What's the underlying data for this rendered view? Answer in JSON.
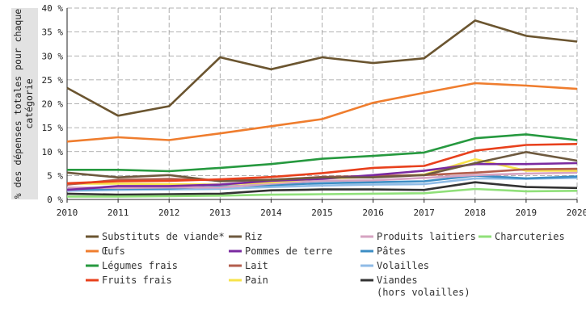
{
  "chart_data": {
    "type": "line",
    "title": "",
    "xlabel": "",
    "ylabel": "% des dépenses totales pour chaque catégorie",
    "x": [
      2010,
      2011,
      2012,
      2013,
      2014,
      2015,
      2016,
      2017,
      2018,
      2019,
      2020
    ],
    "x_tick_labels": [
      "2010",
      "2011",
      "2012",
      "2013",
      "2014",
      "2015",
      "2016",
      "2017",
      "2018",
      "2019",
      "2020"
    ],
    "ylim": [
      0,
      40
    ],
    "y_ticks": [
      0,
      5,
      10,
      15,
      20,
      25,
      30,
      35,
      40
    ],
    "y_tick_labels": [
      "0 %",
      "5 %",
      "10 %",
      "15 %",
      "20 %",
      "25 %",
      "30 %",
      "35 %",
      "40 %"
    ],
    "grid": true,
    "legend_position": "bottom",
    "series": [
      {
        "name": "Substituts de viande*",
        "color": "#6b5530",
        "values": [
          23.3,
          17.5,
          19.5,
          29.7,
          27.2,
          29.7,
          28.5,
          29.5,
          37.4,
          34.2,
          33.0
        ]
      },
      {
        "name": "Œufs",
        "color": "#ef7d2e",
        "values": [
          12.1,
          13.0,
          12.4,
          13.8,
          15.3,
          16.8,
          20.2,
          22.3,
          24.3,
          23.8,
          23.1
        ]
      },
      {
        "name": "Légumes frais",
        "color": "#26993f",
        "values": [
          6.2,
          6.2,
          5.9,
          6.6,
          7.4,
          8.5,
          9.1,
          9.8,
          12.8,
          13.6,
          12.4
        ]
      },
      {
        "name": "Fruits frais",
        "color": "#e8401c",
        "values": [
          3.4,
          3.8,
          3.9,
          4.2,
          4.7,
          5.5,
          6.6,
          7.0,
          10.2,
          11.4,
          11.6
        ]
      },
      {
        "name": "Riz",
        "color": "#6e5a3f",
        "values": [
          5.6,
          4.6,
          5.1,
          3.8,
          4.1,
          4.6,
          4.6,
          5.1,
          7.6,
          9.9,
          8.1
        ]
      },
      {
        "name": "Pommes de terre",
        "color": "#7a2aa0",
        "values": [
          2.0,
          2.8,
          2.8,
          3.1,
          3.9,
          4.3,
          5.1,
          6.0,
          7.4,
          7.4,
          7.6
        ]
      },
      {
        "name": "Lait",
        "color": "#b35d4c",
        "values": [
          3.1,
          4.1,
          4.3,
          4.0,
          4.1,
          4.7,
          4.9,
          5.1,
          5.6,
          6.3,
          6.4
        ]
      },
      {
        "name": "Pain",
        "color": "#f7e34a",
        "values": [
          3.3,
          3.3,
          3.2,
          3.1,
          3.6,
          4.4,
          4.7,
          5.2,
          8.4,
          6.0,
          6.0
        ]
      },
      {
        "name": "Produits laitiers",
        "color": "#d6a3c2",
        "values": [
          2.5,
          2.4,
          2.5,
          2.5,
          3.3,
          3.9,
          4.0,
          4.5,
          5.1,
          5.4,
          5.6
        ]
      },
      {
        "name": "Pâtes",
        "color": "#3c8dc4",
        "values": [
          2.1,
          2.2,
          2.3,
          2.7,
          3.0,
          3.4,
          3.6,
          3.8,
          5.0,
          4.4,
          4.8
        ]
      },
      {
        "name": "Volailles",
        "color": "#8fbbe6",
        "values": [
          1.8,
          2.0,
          2.1,
          2.2,
          2.6,
          2.9,
          3.1,
          3.2,
          4.4,
          4.3,
          4.5
        ]
      },
      {
        "name": "Charcuteries",
        "color": "#90e07a",
        "values": [
          0.6,
          0.6,
          0.7,
          0.8,
          1.0,
          1.1,
          1.2,
          1.3,
          2.2,
          1.7,
          1.8
        ]
      },
      {
        "name": "Viandes\n(hors volailles)",
        "color": "#333333",
        "values": [
          1.2,
          1.0,
          1.1,
          1.2,
          1.9,
          2.1,
          2.1,
          2.0,
          3.6,
          2.6,
          2.4
        ]
      }
    ]
  },
  "legend_layout": [
    [
      "Substituts de viande*",
      "Œufs",
      "Légumes frais",
      "Fruits frais"
    ],
    [
      "Riz",
      "Pommes de terre",
      "Lait",
      "Pain"
    ],
    [
      "Produits laitiers",
      "Pâtes",
      "Volailles",
      "Viandes\n(hors volailles)"
    ],
    [
      "Charcuteries"
    ]
  ]
}
